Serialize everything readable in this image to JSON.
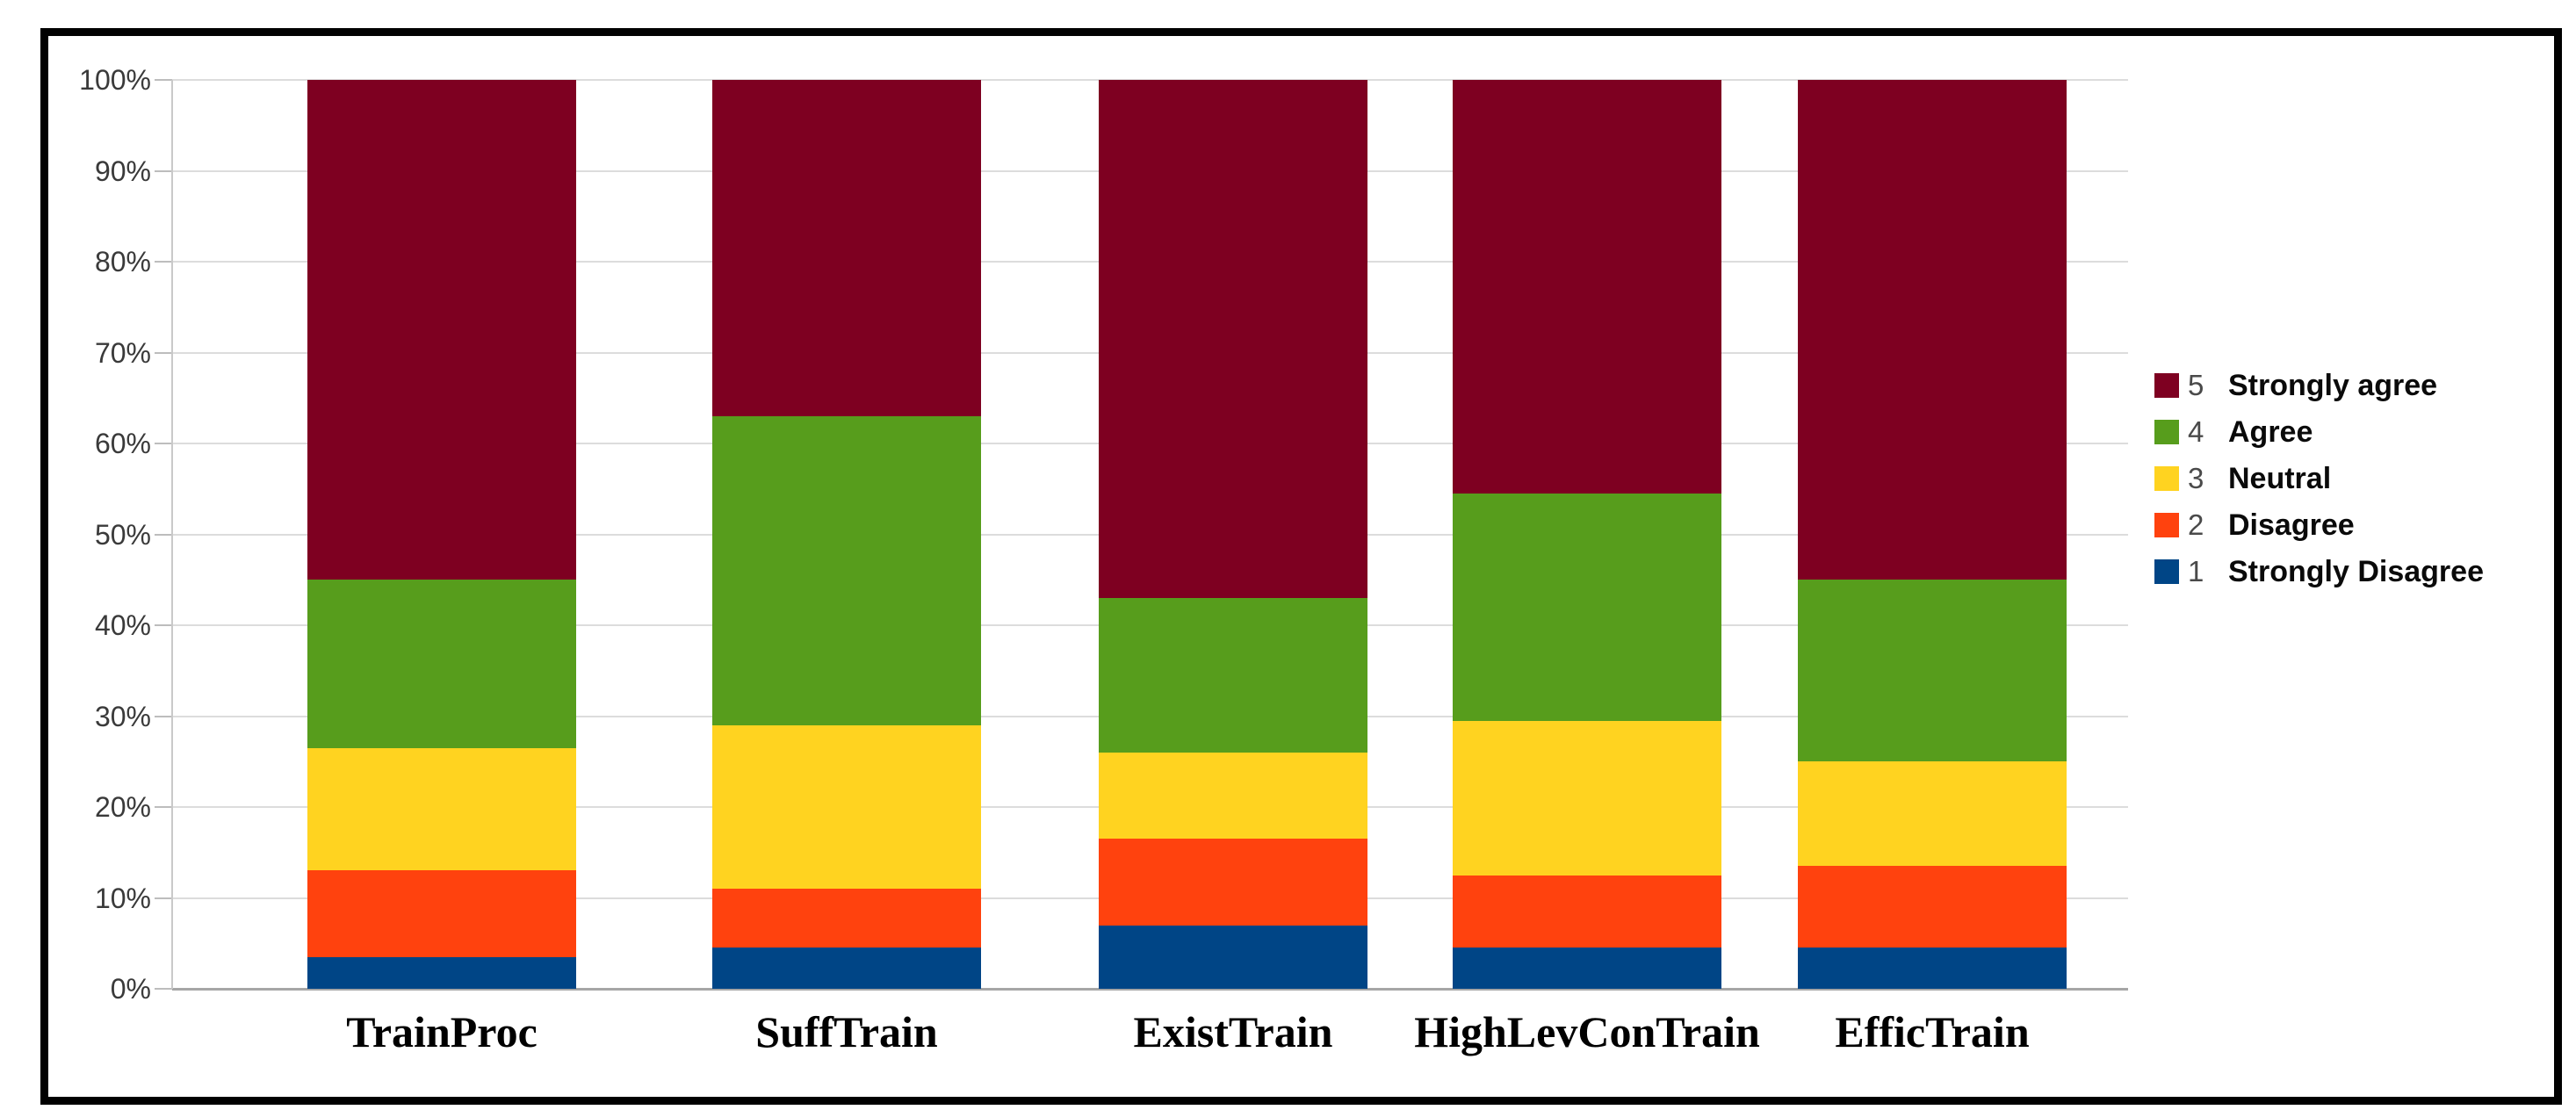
{
  "chart_data": {
    "type": "bar",
    "subtype": "stacked-100-percent",
    "title": "",
    "xlabel": "",
    "ylabel": "",
    "ylim": [
      0,
      100
    ],
    "grid": "horizontal",
    "legend_position": "right",
    "y_ticks": [
      "0%",
      "10%",
      "20%",
      "30%",
      "40%",
      "50%",
      "60%",
      "70%",
      "80%",
      "90%",
      "100%"
    ],
    "categories": [
      "TrainProc",
      "SuffTrain",
      "ExistTrain",
      "HighLevConTrain",
      "EfficTrain"
    ],
    "series": [
      {
        "key": "1",
        "name": "Strongly Disagree",
        "color": "#004586",
        "values": [
          3.5,
          4.5,
          7.0,
          4.5,
          4.5
        ]
      },
      {
        "key": "2",
        "name": "Disagree",
        "color": "#FF420E",
        "values": [
          9.5,
          6.5,
          9.5,
          8.0,
          9.0
        ]
      },
      {
        "key": "3",
        "name": "Neutral",
        "color": "#FFD320",
        "values": [
          13.5,
          18.0,
          9.5,
          17.0,
          11.5
        ]
      },
      {
        "key": "4",
        "name": "Agree",
        "color": "#579D1C",
        "values": [
          18.5,
          34.0,
          17.0,
          25.0,
          20.0
        ]
      },
      {
        "key": "5",
        "name": "Strongly agree",
        "color": "#7E0021",
        "values": [
          55.0,
          37.0,
          57.0,
          45.5,
          55.0
        ]
      }
    ],
    "legend": [
      {
        "number": "5",
        "label": "Strongly agree",
        "color": "#7E0021"
      },
      {
        "number": "4",
        "label": "Agree",
        "color": "#579D1C"
      },
      {
        "number": "3",
        "label": "Neutral",
        "color": "#FFD320"
      },
      {
        "number": "2",
        "label": "Disagree",
        "color": "#FF420E"
      },
      {
        "number": "1",
        "label": "Strongly Disagree",
        "color": "#004586"
      }
    ]
  }
}
